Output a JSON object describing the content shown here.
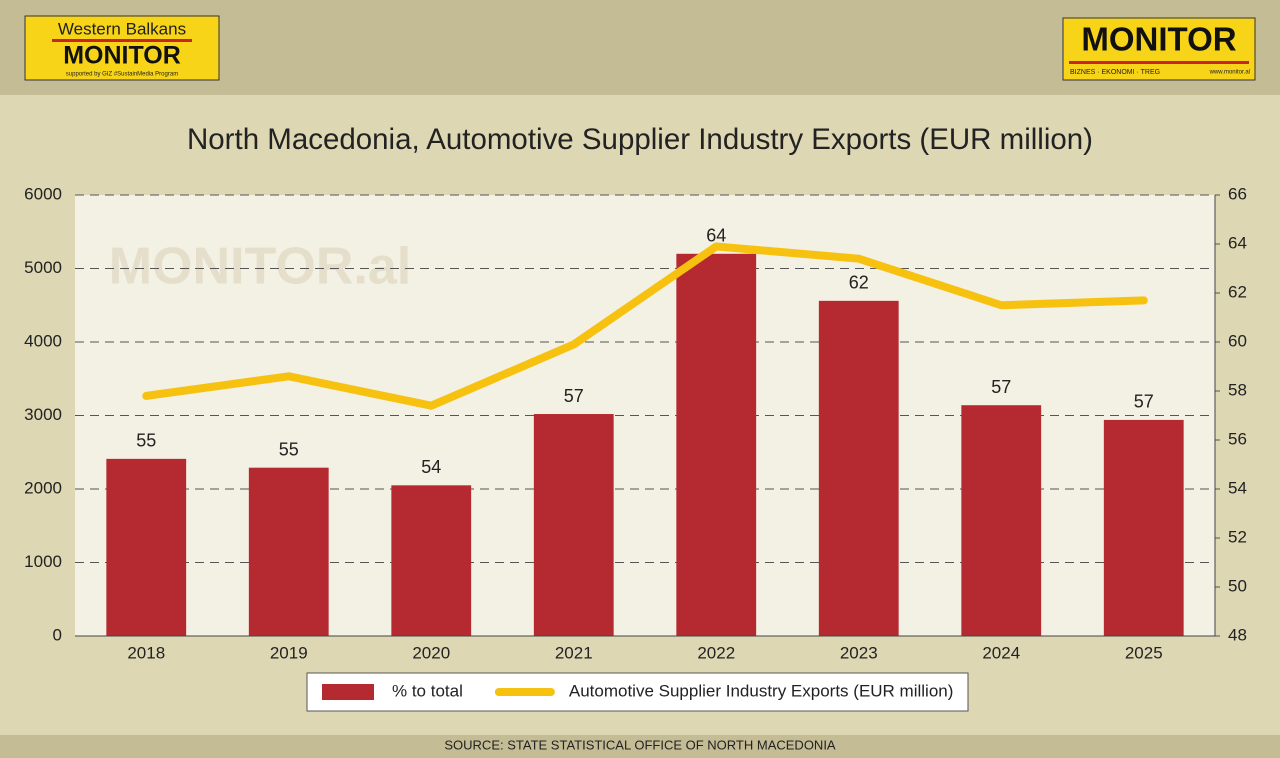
{
  "chart_data": {
    "type": "bar-line",
    "title": "North Macedonia, Automotive Supplier Industry Exports (EUR million)",
    "categories": [
      "2018",
      "2019",
      "2020",
      "2021",
      "2022",
      "2023",
      "2024",
      "2025"
    ],
    "series": [
      {
        "name": "% to total",
        "type": "bar",
        "color": "#b52a31",
        "values": [
          2410,
          2290,
          2050,
          3020,
          5200,
          4560,
          3140,
          2940
        ],
        "data_labels": [
          55,
          55,
          54,
          57,
          64,
          62,
          57,
          57
        ]
      },
      {
        "name": "Automotive Supplier Industry Exports (EUR million)",
        "type": "line",
        "axis": "y2",
        "color": "#f7c10f",
        "values": [
          57.8,
          58.6,
          57.4,
          59.9,
          63.9,
          63.4,
          61.5,
          61.7
        ]
      }
    ],
    "ylim": [
      0,
      6000
    ],
    "yticks": [
      0,
      1000,
      2000,
      3000,
      4000,
      5000,
      6000
    ],
    "y2lim": [
      48,
      66
    ],
    "y2ticks": [
      48,
      50,
      52,
      54,
      56,
      58,
      60,
      62,
      64,
      66
    ],
    "grid": true,
    "legend": "bottom",
    "watermark": "MONITOR.al",
    "source": "SOURCE: STATE STATISTICAL OFFICE OF NORTH MACEDONIA"
  },
  "logos": {
    "left": {
      "top": "Western Balkans",
      "main": "MONITOR",
      "sub": "supported by GIZ #SustainMedia Program"
    },
    "right": {
      "main": "MONITOR",
      "sub": "BIZNES · EKONOMI · TREG",
      "url": "www.monitor.al"
    }
  }
}
